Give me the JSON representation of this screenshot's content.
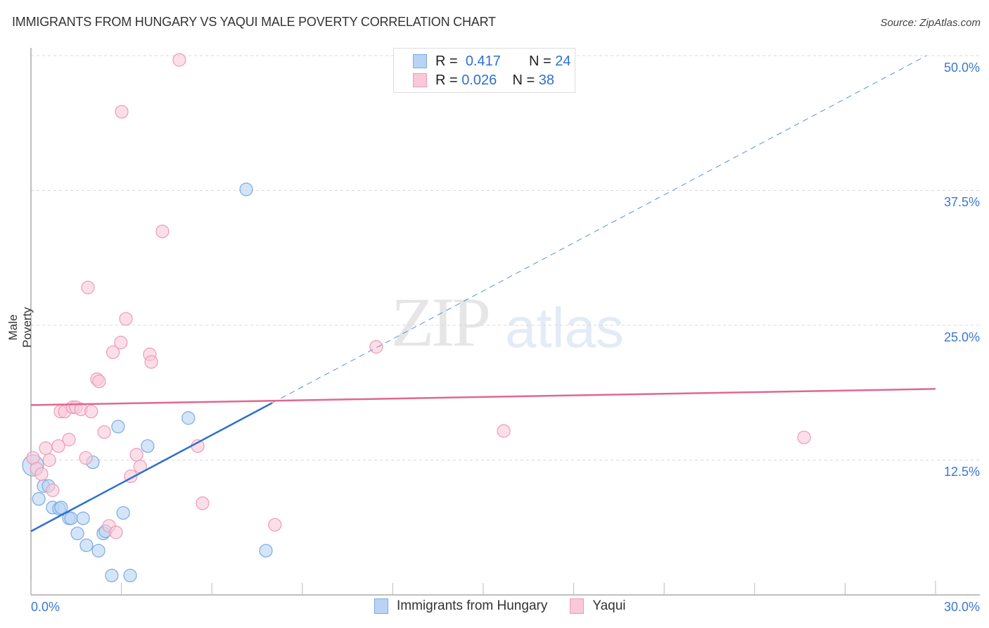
{
  "title": "IMMIGRANTS FROM HUNGARY VS YAQUI MALE POVERTY CORRELATION CHART",
  "source": "Source: ZipAtlas.com",
  "watermark": {
    "zip": "ZIP",
    "atlas": "atlas"
  },
  "legend": {
    "rows": [
      {
        "r_label": "R =",
        "r_value": "0.417",
        "n_label": "N =",
        "n_value": "24",
        "color": "#b8d3f4",
        "border": "#7aaae6"
      },
      {
        "r_label": "R =",
        "r_value": "0.026",
        "n_label": "N =",
        "n_value": "38",
        "color": "#f9c9d8",
        "border": "#ef9ab5"
      }
    ]
  },
  "bottom_legend": [
    {
      "label": "Immigrants from Hungary",
      "color": "#b8d3f4",
      "border": "#7aaae6"
    },
    {
      "label": "Yaqui",
      "color": "#f9c9d8",
      "border": "#ef9ab5"
    }
  ],
  "axes": {
    "y_label": "Male Poverty",
    "y_ticks": [
      "50.0%",
      "37.5%",
      "25.0%",
      "12.5%"
    ],
    "x_min_label": "0.0%",
    "x_max_label": "30.0%"
  },
  "chart_data": {
    "type": "scatter",
    "title": "IMMIGRANTS FROM HUNGARY VS YAQUI MALE POVERTY CORRELATION CHART",
    "xlabel": "Immigrants from Hungary",
    "ylabel": "Male Poverty",
    "xlim": [
      0,
      30
    ],
    "ylim": [
      0,
      52
    ],
    "x_ticks": [
      0,
      3,
      6,
      9,
      12,
      15,
      18,
      21,
      24,
      27,
      30
    ],
    "y_ticks": [
      12.5,
      25.0,
      37.5,
      50.0
    ],
    "grid": "horizontal dashed",
    "legend_position": "top-center (stats) and bottom-center (series)",
    "series": [
      {
        "name": "Immigrants from Hungary",
        "color": "#7aaae6",
        "fill": "#b8d3f4",
        "R": 0.417,
        "N": 24,
        "points": [
          [
            0.07,
            12.0
          ],
          [
            0.26,
            8.9
          ],
          [
            0.42,
            10.1
          ],
          [
            0.58,
            10.1
          ],
          [
            0.72,
            8.1
          ],
          [
            0.93,
            8.0
          ],
          [
            1.0,
            8.1
          ],
          [
            1.26,
            7.1
          ],
          [
            1.33,
            7.1
          ],
          [
            1.73,
            7.1
          ],
          [
            1.54,
            5.7
          ],
          [
            1.84,
            4.6
          ],
          [
            2.05,
            12.3
          ],
          [
            2.24,
            4.1
          ],
          [
            2.4,
            5.7
          ],
          [
            2.47,
            5.9
          ],
          [
            2.68,
            1.8
          ],
          [
            2.89,
            15.6
          ],
          [
            3.06,
            7.6
          ],
          [
            3.29,
            1.8
          ],
          [
            3.87,
            13.8
          ],
          [
            5.22,
            16.4
          ],
          [
            7.14,
            37.6
          ],
          [
            7.79,
            4.1
          ]
        ],
        "trend": {
          "x0": 0,
          "y0": 5.9,
          "x1": 8.0,
          "y1": 17.8,
          "dashed_to_x": 29.7,
          "dashed_to_y": 50.0
        }
      },
      {
        "name": "Yaqui",
        "color": "#ef9ab5",
        "fill": "#f9c9d8",
        "R": 0.026,
        "N": 38,
        "points": [
          [
            4.92,
            49.6
          ],
          [
            3.01,
            44.8
          ],
          [
            4.36,
            33.7
          ],
          [
            1.89,
            28.5
          ],
          [
            3.15,
            25.6
          ],
          [
            2.98,
            23.4
          ],
          [
            2.72,
            22.5
          ],
          [
            3.94,
            22.3
          ],
          [
            3.99,
            21.6
          ],
          [
            2.19,
            20.0
          ],
          [
            2.26,
            19.8
          ],
          [
            0.98,
            17.0
          ],
          [
            1.12,
            17.0
          ],
          [
            1.38,
            17.4
          ],
          [
            1.49,
            17.4
          ],
          [
            1.66,
            17.2
          ],
          [
            2.0,
            17.0
          ],
          [
            2.43,
            15.1
          ],
          [
            1.26,
            14.4
          ],
          [
            0.91,
            13.8
          ],
          [
            0.49,
            13.6
          ],
          [
            0.61,
            12.5
          ],
          [
            0.07,
            12.7
          ],
          [
            0.19,
            11.7
          ],
          [
            0.35,
            11.2
          ],
          [
            0.72,
            9.7
          ],
          [
            1.82,
            12.7
          ],
          [
            3.5,
            13.0
          ],
          [
            3.62,
            11.9
          ],
          [
            3.31,
            11.0
          ],
          [
            5.53,
            13.8
          ],
          [
            5.69,
            8.5
          ],
          [
            2.59,
            6.4
          ],
          [
            2.82,
            5.8
          ],
          [
            8.09,
            6.5
          ],
          [
            11.45,
            23.0
          ],
          [
            15.68,
            15.2
          ],
          [
            25.64,
            14.6
          ]
        ],
        "trend": {
          "x0": 0,
          "y0": 17.6,
          "x1": 30,
          "y1": 19.1
        }
      }
    ]
  }
}
